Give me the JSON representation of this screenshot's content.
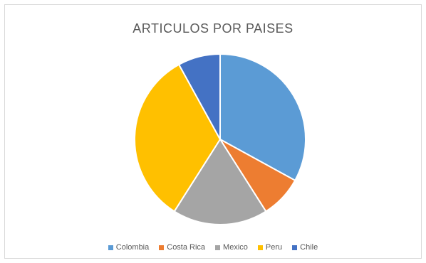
{
  "chart_data": {
    "type": "pie",
    "title": "ARTICULOS POR PAISES",
    "categories": [
      "Colombia",
      "Costa Rica",
      "Mexico",
      "Peru",
      "Chile"
    ],
    "values": [
      33,
      8,
      18,
      33,
      8
    ],
    "colors": [
      "#5B9BD5",
      "#ED7D31",
      "#A5A5A5",
      "#FFC000",
      "#4472C4"
    ],
    "legend_position": "bottom"
  }
}
